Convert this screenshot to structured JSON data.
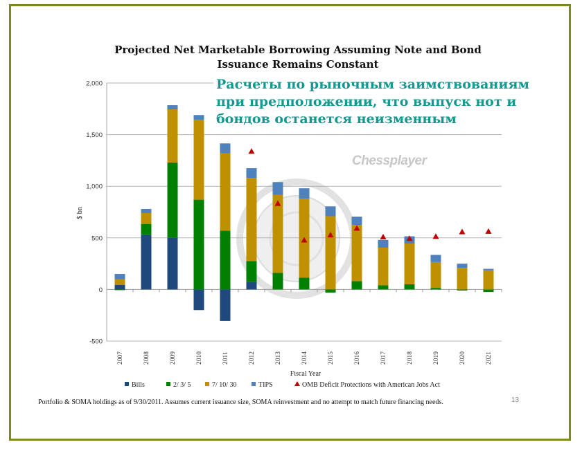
{
  "page": {
    "title_line1": "Projected Net Marketable Borrowing Assuming Note and Bond",
    "title_line2": "Issuance Remains Constant",
    "overlay_text": "Расчеты по рыночным заимствованиям при предположении, что выпуск нот и бондов останется неизменным",
    "watermark": "Chessplayer",
    "seal_text": "DEPARTMENT OF THE TREASURY",
    "footnote": "Portfolio & SOMA holdings as of 9/30/2011. Assumes current issuance size, SOMA reinvestment and no attempt to match future financing needs.",
    "page_number": "13",
    "frame_color": "#7f8a1e"
  },
  "chart_data": {
    "type": "bar",
    "stacked": true,
    "title": "Projected Net Marketable Borrowing Assuming Note and Bond Issuance Remains Constant",
    "xlabel": "Fiscal Year",
    "ylabel": "$ bn",
    "ylim": [
      -500,
      2000
    ],
    "yticks": [
      -500,
      0,
      500,
      1000,
      1500,
      2000
    ],
    "ytick_labels": [
      "-500",
      "0",
      "500",
      "1,000",
      "1,500",
      "2,000"
    ],
    "grid": true,
    "legend_position": "bottom",
    "categories": [
      "2007",
      "2008",
      "2009",
      "2010",
      "2011",
      "2012",
      "2013",
      "2014",
      "2015",
      "2016",
      "2017",
      "2018",
      "2019",
      "2020",
      "2021"
    ],
    "series": [
      {
        "name": "Bills",
        "color": "#1f497d",
        "values": [
          45,
          530,
          500,
          -200,
          -305,
          75,
          0,
          0,
          0,
          0,
          0,
          0,
          0,
          0,
          0
        ]
      },
      {
        "name": "2/ 3/ 5",
        "color": "#008000",
        "values": [
          -5,
          105,
          730,
          870,
          570,
          200,
          160,
          115,
          -30,
          80,
          40,
          50,
          15,
          -10,
          -25
        ]
      },
      {
        "name": "7/ 10/ 30",
        "color": "#bf9000",
        "values": [
          55,
          105,
          515,
          775,
          750,
          805,
          755,
          765,
          710,
          545,
          365,
          395,
          250,
          210,
          185
        ]
      },
      {
        "name": "TIPS",
        "color": "#4f81bd",
        "values": [
          50,
          40,
          40,
          45,
          95,
          95,
          125,
          100,
          95,
          80,
          75,
          70,
          70,
          40,
          15
        ]
      }
    ],
    "markers": {
      "name": "OMB Deficit Protections with American Jobs Act",
      "color": "#c00000",
      "shape": "triangle",
      "values": [
        null,
        null,
        null,
        null,
        null,
        1335,
        830,
        475,
        525,
        590,
        505,
        490,
        510,
        555,
        560
      ]
    }
  }
}
